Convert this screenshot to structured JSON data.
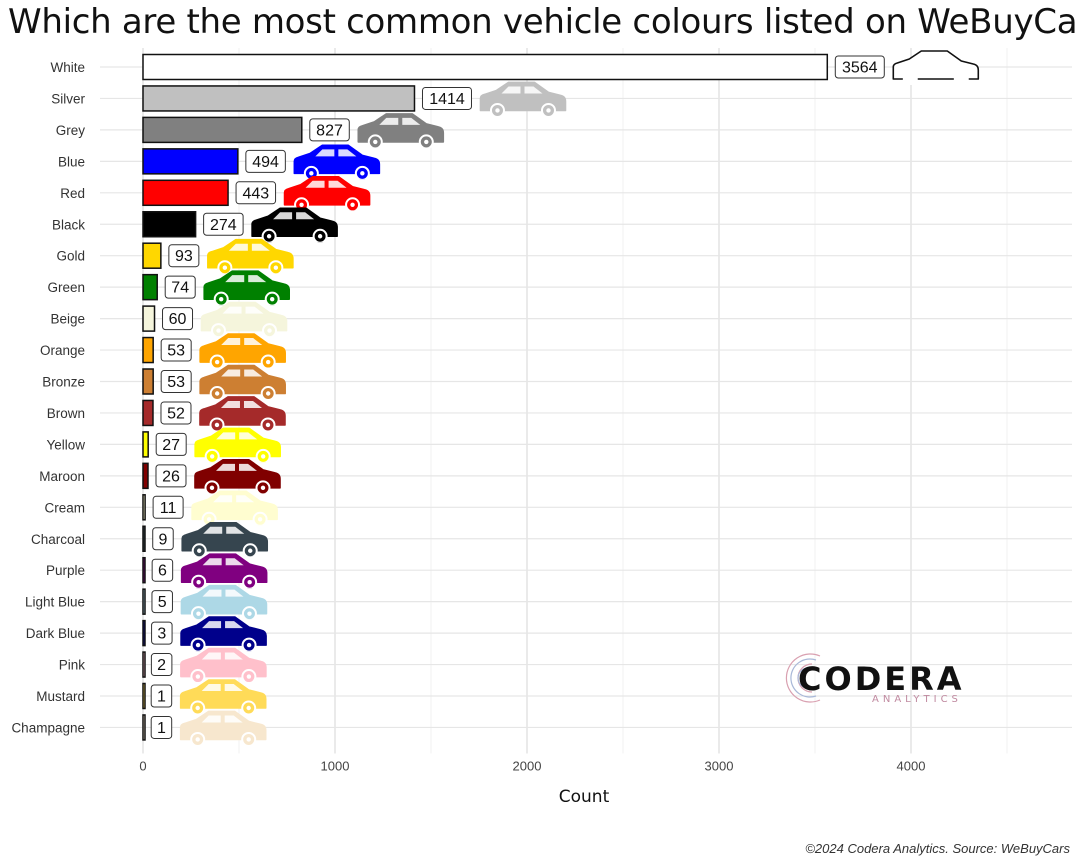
{
  "title": "Which are the most common vehicle colours listed on WeBuyCars?",
  "caption": "©2024 Codera Analytics. Source: WeBuyCars",
  "logo": {
    "name": "CODERA",
    "sub": "ANALYTICS"
  },
  "chart_data": {
    "type": "bar",
    "orientation": "horizontal",
    "title": "Which are the most common vehicle colours listed on WeBuyCars?",
    "xlabel": "Count",
    "ylabel": "",
    "xlim": [
      0,
      4800
    ],
    "xticks": [
      0,
      1000,
      2000,
      3000,
      4000
    ],
    "grid": true,
    "categories": [
      "White",
      "Silver",
      "Grey",
      "Blue",
      "Red",
      "Black",
      "Gold",
      "Green",
      "Beige",
      "Orange",
      "Bronze",
      "Brown",
      "Yellow",
      "Maroon",
      "Cream",
      "Charcoal",
      "Purple",
      "Light Blue",
      "Dark Blue",
      "Pink",
      "Mustard",
      "Champagne"
    ],
    "values": [
      3564,
      1414,
      827,
      494,
      443,
      274,
      93,
      74,
      60,
      53,
      53,
      52,
      27,
      26,
      11,
      9,
      6,
      5,
      3,
      2,
      1,
      1
    ],
    "colors": [
      "#ffffff",
      "#c0c0c0",
      "#808080",
      "#0000ff",
      "#ff0000",
      "#000000",
      "#ffd700",
      "#008000",
      "#f5f5dc",
      "#ffa500",
      "#cd7f32",
      "#a52a2a",
      "#ffff00",
      "#800000",
      "#fffdd0",
      "#36454f",
      "#800080",
      "#add8e6",
      "#00008b",
      "#ffc0cb",
      "#ffdb58",
      "#f7e7ce"
    ],
    "car_icon": "hatchback-car-icon"
  }
}
